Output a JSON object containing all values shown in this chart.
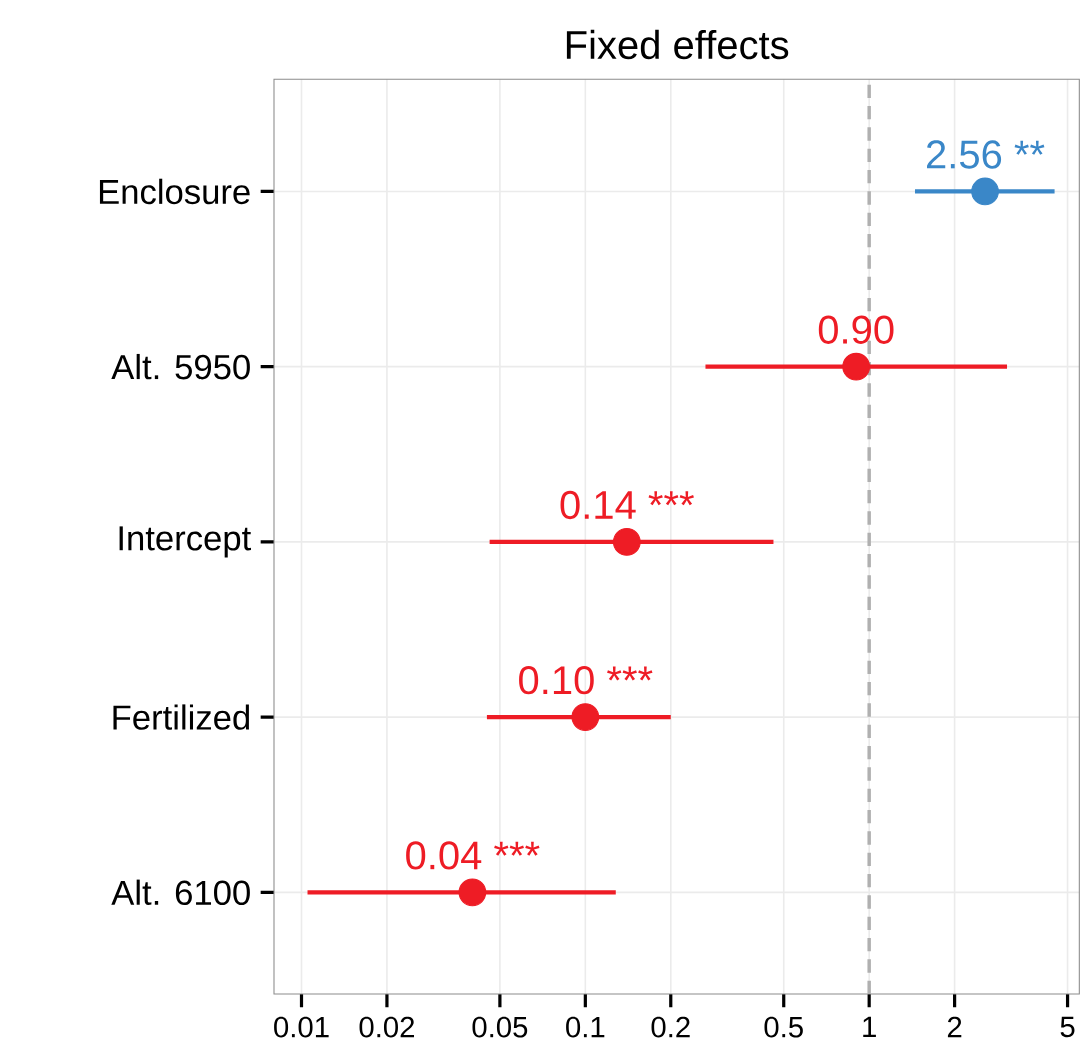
{
  "chart_data": {
    "type": "scatter",
    "orientation": "horizontal",
    "title": "Fixed effects",
    "categories": [
      "Enclosure",
      "Alt. 5950",
      "Intercept",
      "Fertilized",
      "Alt. 6100"
    ],
    "values": [
      2.56,
      0.9,
      0.14,
      0.1,
      0.04
    ],
    "errors": [
      [
        1.45,
        4.5
      ],
      [
        0.265,
        3.06
      ],
      [
        0.046,
        0.46
      ],
      [
        0.045,
        0.2
      ],
      [
        0.0105,
        0.128
      ]
    ],
    "colors": [
      "#3a87c8",
      "#ee1c25",
      "#ee1c25",
      "#ee1c25",
      "#ee1c25"
    ],
    "value_labels": [
      "2.56 **",
      "0.90",
      "0.14 ***",
      "0.10 ***",
      "0.04 ***"
    ],
    "log": "x",
    "xlim": [
      0.008,
      5.5
    ],
    "xticks": [
      0.01,
      0.02,
      0.05,
      0.1,
      0.2,
      0.5,
      1,
      2,
      5
    ],
    "grid": true,
    "marker": "circle",
    "ref_lines": [
      {
        "axis": "x",
        "value": 1,
        "color": "#b0b0b0",
        "line_style": "dashed"
      }
    ]
  }
}
